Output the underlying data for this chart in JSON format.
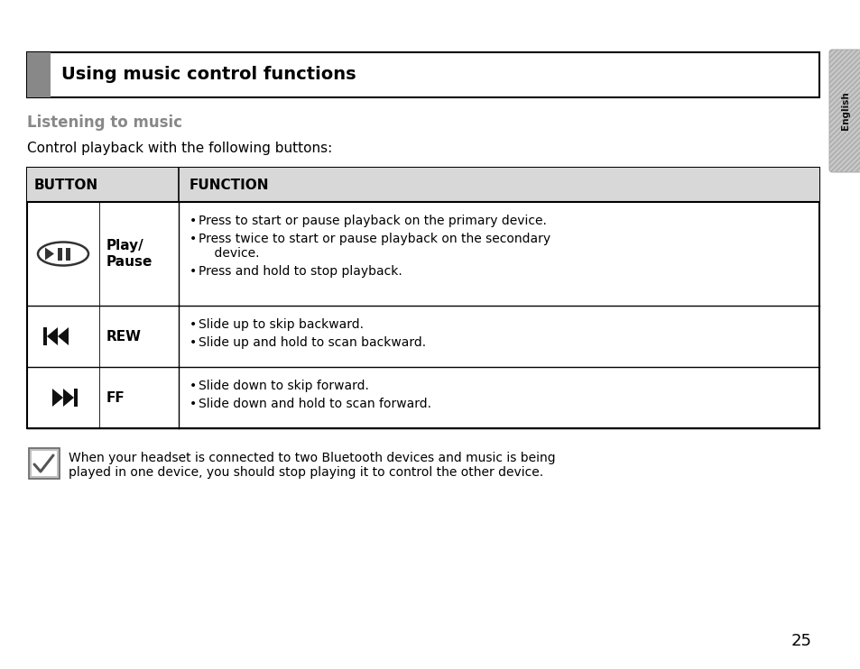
{
  "title": "Using music control functions",
  "subtitle": "Listening to music",
  "intro_text": "Control playback with the following buttons:",
  "header_col1": "BUTTON",
  "header_col2": "FUNCTION",
  "rows": [
    {
      "icon": "play_pause",
      "button_name": "Play/\nPause",
      "functions": [
        "Press to start or pause playback on the primary device.",
        "Press twice to start or pause playback on the secondary\n    device.",
        "Press and hold to stop playback."
      ]
    },
    {
      "icon": "rew",
      "button_name": "REW",
      "functions": [
        "Slide up to skip backward.",
        "Slide up and hold to scan backward."
      ]
    },
    {
      "icon": "ff",
      "button_name": "FF",
      "functions": [
        "Slide down to skip forward.",
        "Slide down and hold to scan forward."
      ]
    }
  ],
  "note_line1": "When your headset is connected to two Bluetooth devices and music is being",
  "note_line2": "played in one device, you should stop playing it to control the other device.",
  "page_number": "25",
  "sidebar_label": "English",
  "bg_color": "#ffffff",
  "header_bg": "#d8d8d8",
  "table_border": "#000000",
  "title_accent_color": "#888888",
  "subtitle_color": "#888888",
  "text_color": "#000000",
  "sidebar_bg": "#c8c8c8"
}
